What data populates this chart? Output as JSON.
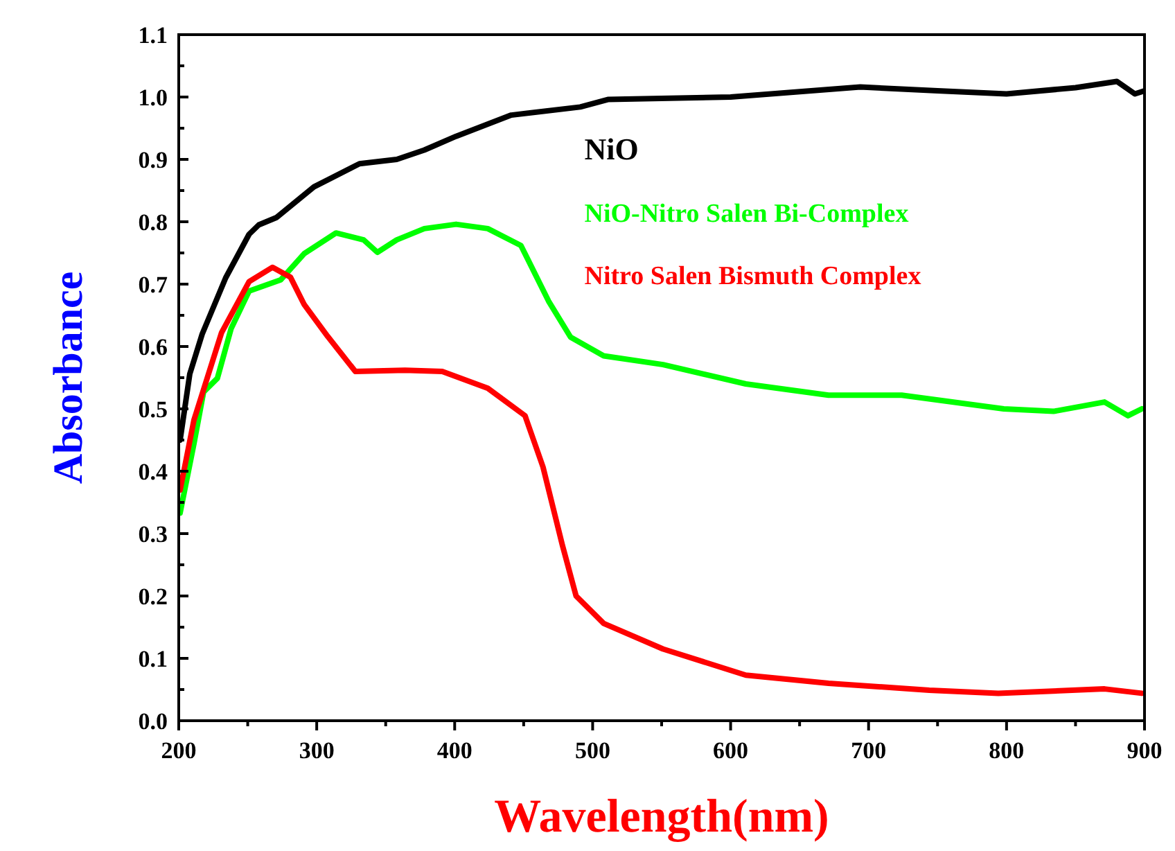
{
  "chart_data": {
    "type": "line",
    "xlabel": "Wavelength(nm)",
    "ylabel": "Absorbance",
    "xlim": [
      200,
      900
    ],
    "ylim": [
      0,
      1.1
    ],
    "xticks": [
      200,
      {
        "value": 250,
        "label": null
      },
      300,
      {
        "value": 350,
        "label": null
      },
      400,
      {
        "value": 450,
        "label": null
      },
      500,
      {
        "value": 550,
        "label": null
      },
      600,
      {
        "value": 650,
        "label": null
      },
      700,
      {
        "value": 750,
        "label": null
      },
      800,
      {
        "value": 850,
        "label": null
      },
      900
    ],
    "yticks": [
      {
        "value": 0,
        "label": "0.0"
      },
      {
        "value": 0.05,
        "label": null
      },
      0.1,
      {
        "value": 0.15,
        "label": null
      },
      0.2,
      {
        "value": 0.25,
        "label": null
      },
      0.3,
      {
        "value": 0.35,
        "label": null
      },
      0.4,
      {
        "value": 0.45,
        "label": null
      },
      0.5,
      {
        "value": 0.55,
        "label": null
      },
      0.6,
      {
        "value": 0.65,
        "label": null
      },
      0.7,
      {
        "value": 0.75,
        "label": null
      },
      0.8,
      {
        "value": 0.85,
        "label": null
      },
      0.9,
      {
        "value": 0.95,
        "label": null
      },
      {
        "value": 1,
        "label": "1.0"
      },
      {
        "value": 1.05,
        "label": null
      },
      1.1
    ],
    "grid": false,
    "legend": "top right",
    "line_style": "solid",
    "marker": "none",
    "series": [
      {
        "name": "NiO",
        "color": "#000000",
        "x": [
          201,
          208,
          217,
          234,
          251,
          258,
          271,
          298,
          331,
          358,
          378,
          401,
          441,
          491,
          511,
          600,
          694,
          750,
          800,
          850,
          880,
          893,
          900
        ],
        "values": [
          0.45,
          0.556,
          0.62,
          0.71,
          0.78,
          0.795,
          0.807,
          0.856,
          0.893,
          0.9,
          0.915,
          0.937,
          0.971,
          0.984,
          0.996,
          1.0,
          1.016,
          1.01,
          1.005,
          1.015,
          1.025,
          1.005,
          1.01
        ]
      },
      {
        "name": "NiO-Nitro Salen Bi-Complex",
        "color": "#00ff00",
        "x": [
          201,
          211,
          218,
          228,
          238,
          251,
          274,
          291,
          314,
          334,
          344,
          358,
          378,
          401,
          424,
          448,
          468,
          484,
          508,
          551,
          611,
          671,
          724,
          798,
          834,
          871,
          888,
          898
        ],
        "values": [
          0.333,
          0.444,
          0.527,
          0.549,
          0.629,
          0.689,
          0.707,
          0.749,
          0.782,
          0.771,
          0.751,
          0.771,
          0.789,
          0.796,
          0.789,
          0.762,
          0.673,
          0.615,
          0.585,
          0.571,
          0.54,
          0.522,
          0.522,
          0.5,
          0.496,
          0.511,
          0.489,
          0.5
        ]
      },
      {
        "name": "Nitro Salen Bismuth Complex",
        "color": "#ff0000",
        "x": [
          201,
          211,
          231,
          251,
          268,
          281,
          291,
          308,
          328,
          364,
          391,
          424,
          451,
          464,
          478,
          488,
          508,
          551,
          611,
          671,
          744,
          794,
          871,
          898
        ],
        "values": [
          0.37,
          0.482,
          0.622,
          0.704,
          0.727,
          0.711,
          0.667,
          0.616,
          0.56,
          0.562,
          0.56,
          0.533,
          0.489,
          0.407,
          0.282,
          0.2,
          0.156,
          0.115,
          0.073,
          0.06,
          0.049,
          0.044,
          0.051,
          0.044
        ]
      }
    ]
  }
}
